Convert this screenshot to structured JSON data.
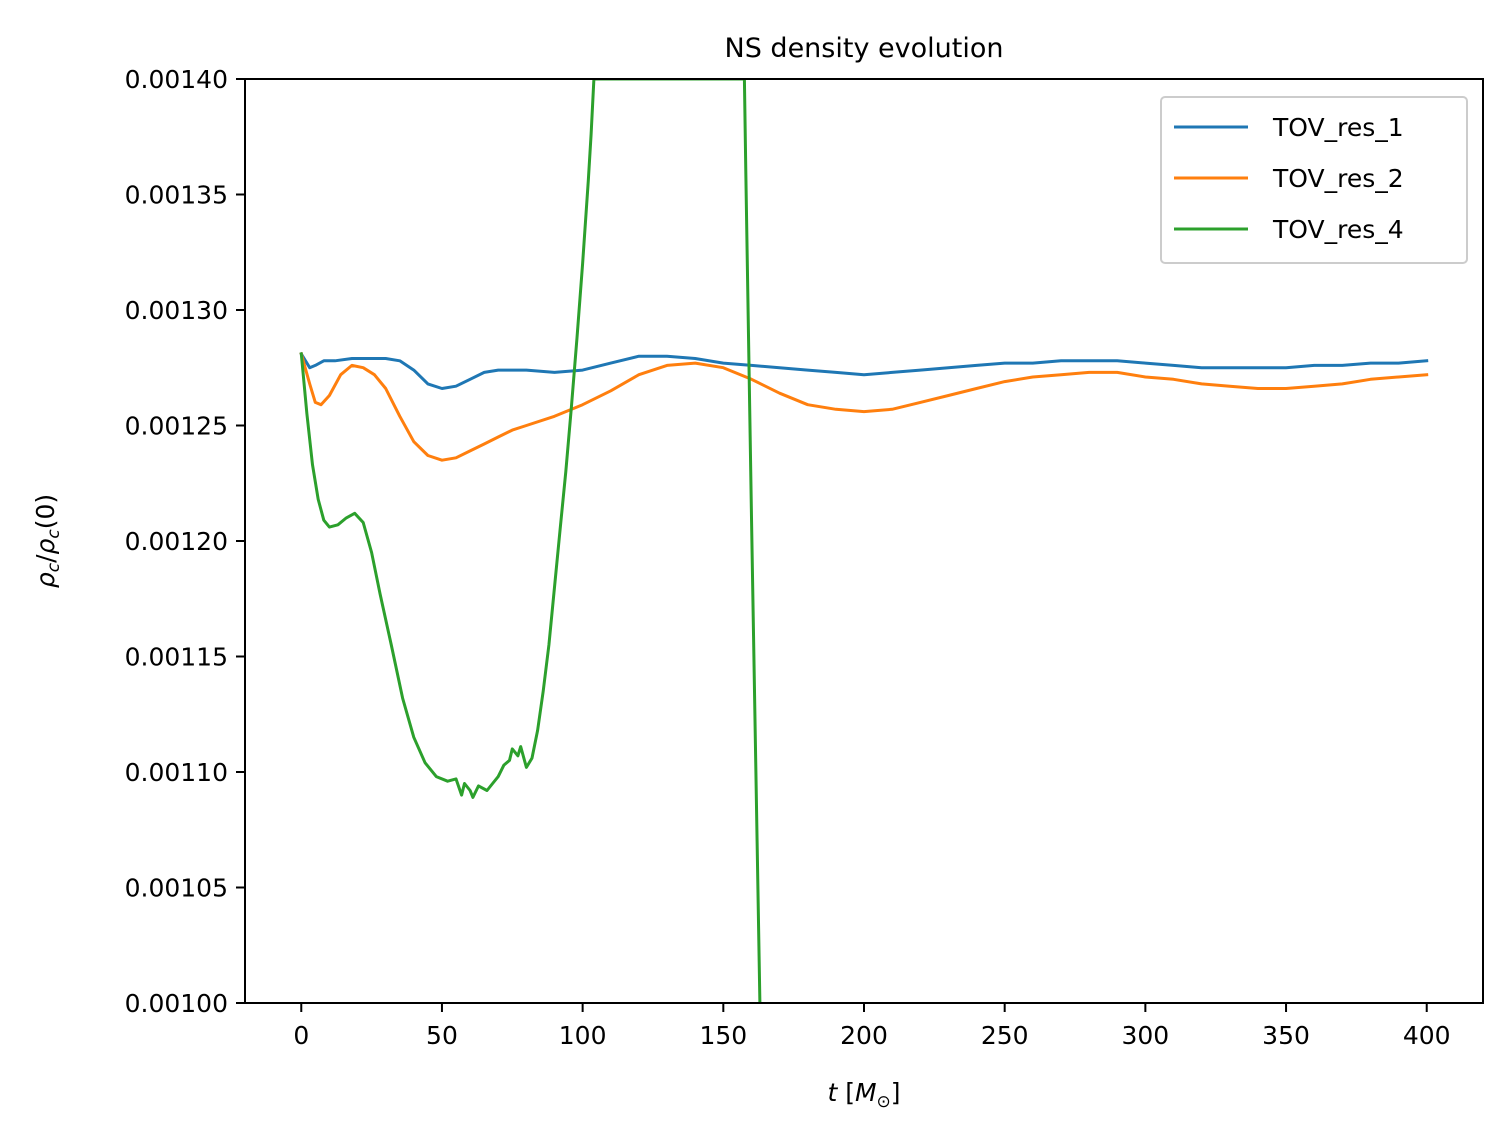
{
  "chart_data": {
    "type": "line",
    "title": "NS density evolution",
    "xlabel": "t [M_⊙]",
    "ylabel": "ρ_c/ρ_c(0)",
    "xlim": [
      -20,
      420
    ],
    "ylim": [
      0.001,
      0.0014
    ],
    "xticks": [
      0,
      50,
      100,
      150,
      200,
      250,
      300,
      350,
      400
    ],
    "yticks": [
      0.001,
      0.00105,
      0.0011,
      0.00115,
      0.0012,
      0.00125,
      0.0013,
      0.00135,
      0.0014
    ],
    "xtick_labels": [
      "0",
      "50",
      "100",
      "150",
      "200",
      "250",
      "300",
      "350",
      "400"
    ],
    "ytick_labels": [
      "0.00100",
      "0.00105",
      "0.00110",
      "0.00115",
      "0.00120",
      "0.00125",
      "0.00130",
      "0.00135",
      "0.00140"
    ],
    "grid": false,
    "legend_position": "upper right",
    "series": [
      {
        "name": "TOV_res_1",
        "color": "#1f77b4",
        "x": [
          0,
          3,
          5,
          8,
          12,
          18,
          25,
          30,
          35,
          40,
          45,
          50,
          55,
          60,
          65,
          70,
          80,
          90,
          100,
          110,
          120,
          130,
          140,
          150,
          160,
          170,
          180,
          190,
          200,
          210,
          220,
          230,
          240,
          250,
          260,
          270,
          280,
          290,
          300,
          310,
          320,
          330,
          340,
          350,
          360,
          370,
          380,
          390,
          400
        ],
        "y": [
          0.001281,
          0.001275,
          0.001276,
          0.001278,
          0.001278,
          0.001279,
          0.001279,
          0.001279,
          0.001278,
          0.001274,
          0.001268,
          0.001266,
          0.001267,
          0.00127,
          0.001273,
          0.001274,
          0.001274,
          0.001273,
          0.001274,
          0.001277,
          0.00128,
          0.00128,
          0.001279,
          0.001277,
          0.001276,
          0.001275,
          0.001274,
          0.001273,
          0.001272,
          0.001273,
          0.001274,
          0.001275,
          0.001276,
          0.001277,
          0.001277,
          0.001278,
          0.001278,
          0.001278,
          0.001277,
          0.001276,
          0.001275,
          0.001275,
          0.001275,
          0.001275,
          0.001276,
          0.001276,
          0.001277,
          0.001277,
          0.001278
        ]
      },
      {
        "name": "TOV_res_2",
        "color": "#ff7f0e",
        "x": [
          0,
          3,
          5,
          7,
          10,
          14,
          18,
          22,
          26,
          30,
          35,
          40,
          45,
          50,
          55,
          60,
          65,
          70,
          75,
          80,
          90,
          100,
          110,
          120,
          130,
          140,
          150,
          160,
          170,
          180,
          190,
          200,
          210,
          220,
          230,
          240,
          250,
          260,
          270,
          280,
          290,
          300,
          310,
          320,
          330,
          340,
          350,
          360,
          370,
          380,
          390,
          400
        ],
        "y": [
          0.001281,
          0.001268,
          0.00126,
          0.001259,
          0.001263,
          0.001272,
          0.001276,
          0.001275,
          0.001272,
          0.001266,
          0.001254,
          0.001243,
          0.001237,
          0.001235,
          0.001236,
          0.001239,
          0.001242,
          0.001245,
          0.001248,
          0.00125,
          0.001254,
          0.001259,
          0.001265,
          0.001272,
          0.001276,
          0.001277,
          0.001275,
          0.00127,
          0.001264,
          0.001259,
          0.001257,
          0.001256,
          0.001257,
          0.00126,
          0.001263,
          0.001266,
          0.001269,
          0.001271,
          0.001272,
          0.001273,
          0.001273,
          0.001271,
          0.00127,
          0.001268,
          0.001267,
          0.001266,
          0.001266,
          0.001267,
          0.001268,
          0.00127,
          0.001271,
          0.001272
        ]
      },
      {
        "name": "TOV_res_4",
        "color": "#2ca02c",
        "x": [
          0,
          2,
          4,
          6,
          8,
          10,
          13,
          16,
          19,
          22,
          25,
          28,
          32,
          36,
          40,
          44,
          48,
          52,
          55,
          57,
          58,
          60,
          61,
          63,
          66,
          68,
          70,
          72,
          74,
          75,
          77,
          78,
          80,
          82,
          84,
          86,
          88,
          90,
          92,
          94,
          96,
          98,
          100,
          102,
          103,
          104,
          157.5,
          158,
          160,
          162,
          163
        ],
        "y": [
          0.001281,
          0.001255,
          0.001233,
          0.001218,
          0.001209,
          0.001206,
          0.001207,
          0.00121,
          0.001212,
          0.001208,
          0.001195,
          0.001177,
          0.001155,
          0.001132,
          0.001115,
          0.001104,
          0.001098,
          0.001096,
          0.001097,
          0.00109,
          0.001095,
          0.001092,
          0.001089,
          0.001094,
          0.001092,
          0.001095,
          0.001098,
          0.001103,
          0.001105,
          0.00111,
          0.001107,
          0.001111,
          0.001102,
          0.001106,
          0.001118,
          0.001135,
          0.001155,
          0.00118,
          0.001205,
          0.00123,
          0.001258,
          0.001288,
          0.00132,
          0.001356,
          0.001376,
          0.0014,
          0.0014,
          0.00136,
          0.00121,
          0.00107,
          0.001
        ]
      }
    ]
  }
}
